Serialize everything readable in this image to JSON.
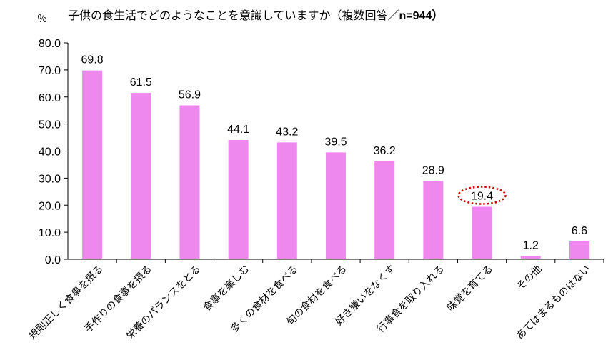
{
  "chart_data": {
    "type": "bar",
    "title": "子供の食生活でどのようなことを意識していますか（複数回答／",
    "title_n": "n=944）",
    "unit": "％",
    "categories": [
      "規則正しく食事を摂る",
      "手作りの食事を摂る",
      "栄養のバランスをとる",
      "食事を楽しむ",
      "多くの食材を食べる",
      "旬の食材を食べる",
      "好き嫌いをなくす",
      "行事食を取り入れる",
      "味覚を育てる",
      "その他",
      "あてはまるものはない"
    ],
    "values": [
      69.8,
      61.5,
      56.9,
      44.1,
      43.2,
      39.5,
      36.2,
      28.9,
      19.4,
      1.2,
      6.6
    ],
    "value_labels": [
      "69.8",
      "61.5",
      "56.9",
      "44.1",
      "43.2",
      "39.5",
      "36.2",
      "28.9",
      "19.4",
      "1.2",
      "6.6"
    ],
    "ylim": [
      0,
      80
    ],
    "yticks": [
      "0.0",
      "10.0",
      "20.0",
      "30.0",
      "40.0",
      "50.0",
      "60.0",
      "70.0",
      "80.0"
    ],
    "bar_color": "#ee88ee",
    "highlight_index": 8,
    "highlight_color": "#cc0000",
    "grid": false,
    "legend": "none"
  }
}
